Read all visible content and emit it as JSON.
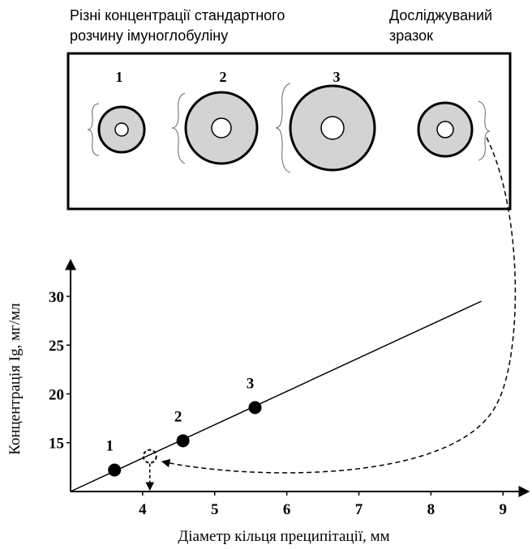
{
  "header": {
    "standard_label": [
      "Різні концентрації стандартного",
      "розчину імуноглобуліну"
    ],
    "sample_label": [
      "Досліджуваний",
      "зразок"
    ]
  },
  "rings": [
    {
      "label": "1"
    },
    {
      "label": "2"
    },
    {
      "label": "3"
    }
  ],
  "chart_data": {
    "type": "scatter",
    "x_label": "Діаметр кільця преципітації, мм",
    "y_label": "Концентрація Ig, мг/мл",
    "xlim": [
      3,
      9.2
    ],
    "ylim": [
      10,
      33.4
    ],
    "xticks": [
      4,
      5,
      6,
      7,
      8,
      9
    ],
    "yticks": [
      15,
      20,
      25,
      30
    ],
    "grid": false,
    "color": "#000000",
    "points": {
      "labels": [
        "1",
        "2",
        "3"
      ],
      "x": [
        3.61,
        4.56,
        5.56
      ],
      "y": [
        12.2,
        15.2,
        18.6
      ]
    },
    "unknown_point": {
      "x": 4.1,
      "y": 13.6
    },
    "line": {
      "x": [
        3,
        8.7
      ],
      "y": [
        10,
        29.5
      ]
    }
  }
}
